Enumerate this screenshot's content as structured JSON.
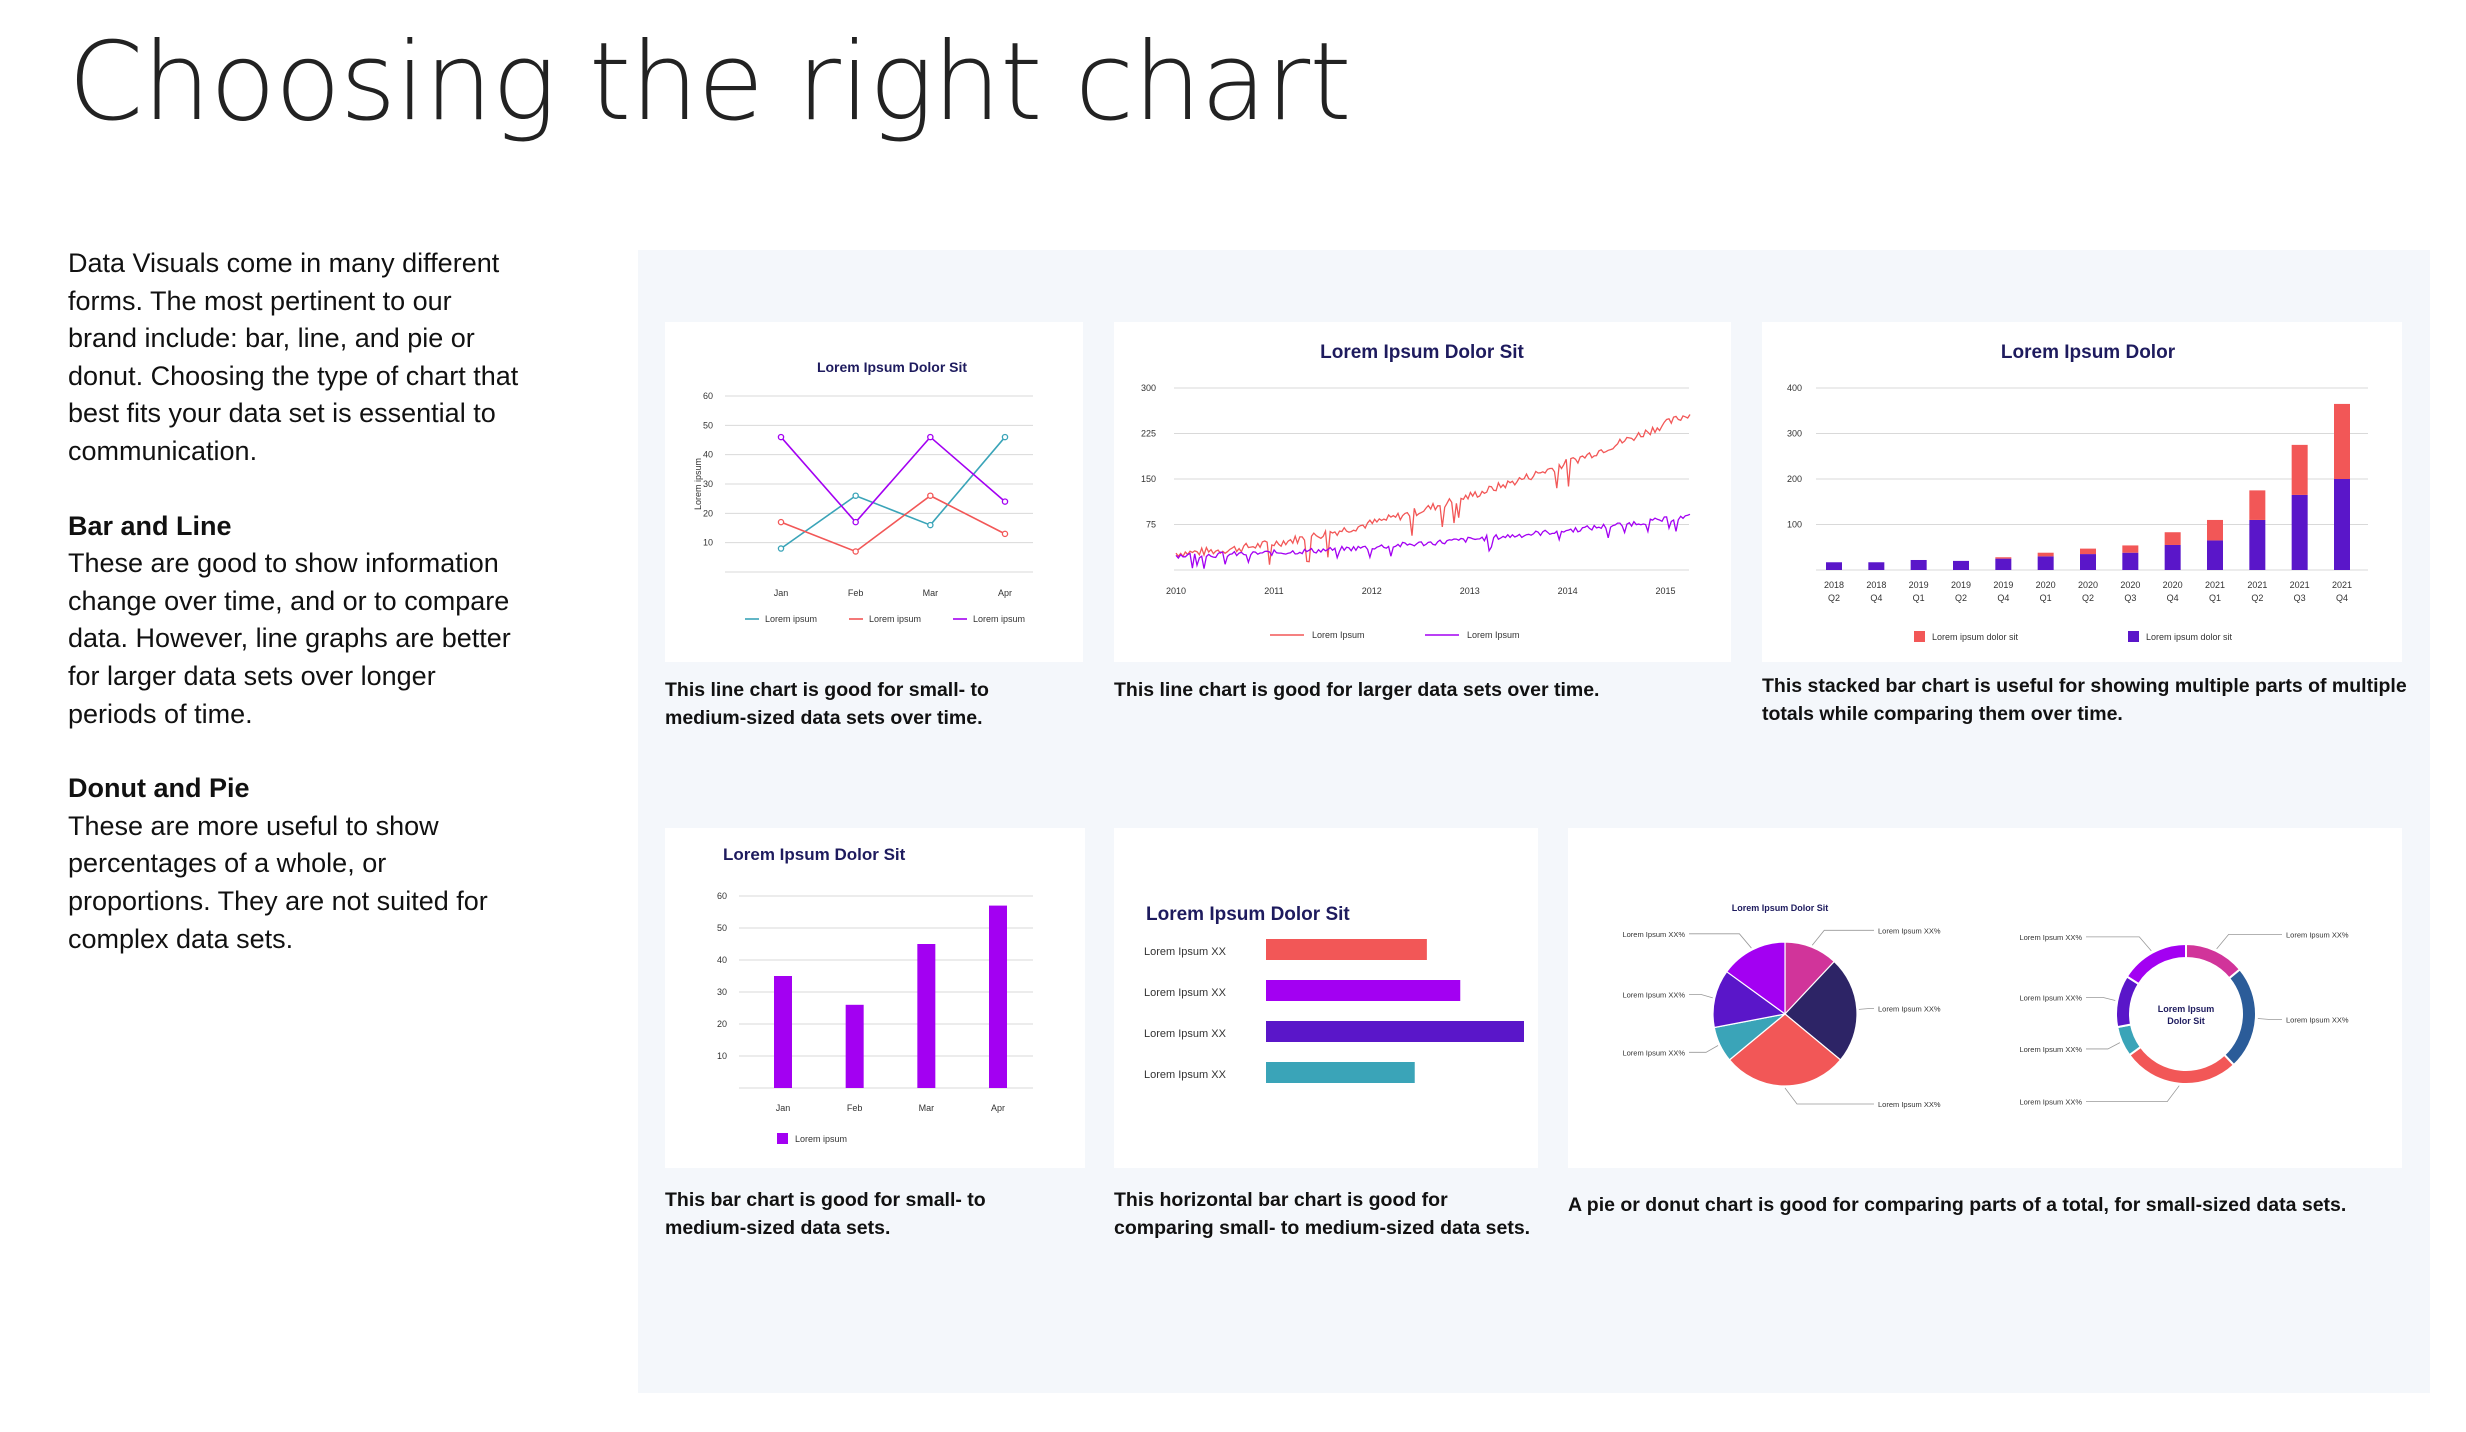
{
  "page": {
    "title": "Choosing the right chart",
    "intro": "Data Visuals come in many different forms. The most pertinent to our brand include: bar, line, and pie or donut. Choosing the type of chart that best fits your data set is essential to communication.",
    "bar_line_heading": "Bar and Line",
    "bar_line_text": "These are good to show information change over time, and or to compare data. However, line graphs are better for larger data sets over longer periods of time.",
    "donut_pie_heading": "Donut and Pie",
    "donut_pie_text": "These are more useful to show percentages of a whole, or proportions. They are not suited for complex data sets."
  },
  "captions": {
    "c1": "This line chart is good for small- to medium-sized data sets over time.",
    "c2": "This line chart is good for larger data sets over time.",
    "c3": "This stacked bar chart is useful for showing multiple parts of multiple totals while comparing them over time.",
    "c4": "This bar chart is good for small- to medium-sized data sets.",
    "c5": "This horizontal bar chart is good for comparing small- to medium-sized data sets.",
    "c6": "A pie or donut chart is good for comparing parts of a total, for small-sized data sets."
  },
  "colors": {
    "navy": "#1e1b5e",
    "coral": "#f25757",
    "violet": "#a300f2",
    "indigo": "#5a16c9",
    "teal": "#3aa4b8",
    "magenta": "#d1349a",
    "darknavy": "#2d2466",
    "blue": "#2b5c99"
  },
  "chart_data": [
    {
      "id": "line_small",
      "type": "line",
      "title": "Lorem Ipsum Dolor Sit",
      "ylabel": "Lorem ipsum",
      "categories": [
        "Jan",
        "Feb",
        "Mar",
        "Apr"
      ],
      "yticks": [
        "10",
        "20",
        "30",
        "40",
        "50",
        "60"
      ],
      "ylim": [
        0,
        60
      ],
      "series": [
        {
          "name": "Lorem ipsum",
          "color": "#3aa4b8",
          "values": [
            8,
            26,
            16,
            46
          ]
        },
        {
          "name": "Lorem ipsum",
          "color": "#f25757",
          "values": [
            17,
            7,
            26,
            13
          ]
        },
        {
          "name": "Lorem ipsum",
          "color": "#a300f2",
          "values": [
            46,
            17,
            46,
            24
          ]
        }
      ]
    },
    {
      "id": "line_large",
      "type": "line",
      "title": "Lorem Ipsum Dolor Sit",
      "xticks": [
        "2010",
        "2011",
        "2012",
        "2013",
        "2014",
        "2015"
      ],
      "yticks": [
        "75",
        "150",
        "225",
        "300"
      ],
      "ylim": [
        0,
        300
      ],
      "xlim": [
        2010,
        2015.25
      ],
      "series": [
        {
          "name": "Lorem Ipsum",
          "color": "#f25757",
          "start": 28,
          "end": 258
        },
        {
          "name": "Lorem Ipsum",
          "color": "#a300f2",
          "start": 24,
          "end": 88
        }
      ]
    },
    {
      "id": "stacked_bar",
      "type": "bar",
      "title": "Lorem Ipsum Dolor",
      "categories": [
        [
          "2018",
          "Q2"
        ],
        [
          "2018",
          "Q4"
        ],
        [
          "2019",
          "Q1"
        ],
        [
          "2019",
          "Q2"
        ],
        [
          "2019",
          "Q4"
        ],
        [
          "2020",
          "Q1"
        ],
        [
          "2020",
          "Q2"
        ],
        [
          "2020",
          "Q3"
        ],
        [
          "2020",
          "Q4"
        ],
        [
          "2021",
          "Q1"
        ],
        [
          "2021",
          "Q2"
        ],
        [
          "2021",
          "Q3"
        ],
        [
          "2021",
          "Q4"
        ]
      ],
      "yticks": [
        "100",
        "200",
        "300",
        "400"
      ],
      "ylim": [
        0,
        400
      ],
      "series": [
        {
          "name": "Lorem ipsum dolor sit",
          "color": "#f25757",
          "values": [
            0,
            0,
            0,
            0,
            3,
            8,
            12,
            16,
            28,
            45,
            65,
            110,
            165
          ]
        },
        {
          "name": "Lorem ipsum dolor sit",
          "color": "#5a16c9",
          "values": [
            17,
            17,
            22,
            20,
            25,
            30,
            35,
            38,
            55,
            65,
            110,
            165,
            200
          ]
        }
      ]
    },
    {
      "id": "bar_small",
      "type": "bar",
      "title": "Lorem Ipsum Dolor Sit",
      "categories": [
        "Jan",
        "Feb",
        "Mar",
        "Apr"
      ],
      "yticks": [
        "10",
        "20",
        "30",
        "40",
        "50",
        "60"
      ],
      "ylim": [
        0,
        60
      ],
      "series": [
        {
          "name": "Lorem ipsum",
          "color": "#a300f2",
          "values": [
            35,
            26,
            45,
            57
          ]
        }
      ]
    },
    {
      "id": "hbar",
      "type": "bar",
      "title": "Lorem Ipsum Dolor Sit",
      "categories": [
        "Lorem Ipsum XX",
        "Lorem Ipsum XX",
        "Lorem Ipsum XX",
        "Lorem Ipsum XX"
      ],
      "values": [
        53,
        64,
        85,
        49
      ],
      "colors": [
        "#f25757",
        "#a300f2",
        "#5a16c9",
        "#3aa4b8"
      ],
      "xlim": [
        0,
        85
      ]
    },
    {
      "id": "pie",
      "type": "pie",
      "title": "Lorem Ipsum Dolor Sit",
      "labels": [
        "Lorem Ipsum XX%",
        "Lorem Ipsum XX%",
        "Lorem Ipsum XX%",
        "Lorem Ipsum XX%",
        "Lorem Ipsum XX%",
        "Lorem Ipsum XX%"
      ],
      "values": [
        12,
        24,
        28,
        8,
        13,
        15
      ],
      "colors": [
        "#d1349a",
        "#2d2466",
        "#f25757",
        "#3aa4b8",
        "#5a16c9",
        "#a300f2"
      ]
    },
    {
      "id": "donut",
      "type": "pie",
      "title": "Lorem Ipsum Dolor Sit",
      "center_label": [
        "Lorem Ipsum",
        "Dolor Sit"
      ],
      "labels": [
        "Lorem Ipsum XX%",
        "Lorem Ipsum XX%",
        "Lorem Ipsum XX%",
        "Lorem Ipsum XX%",
        "Lorem Ipsum XX%",
        "Lorem Ipsum XX%"
      ],
      "values": [
        14,
        24,
        27,
        7,
        12,
        16
      ],
      "colors": [
        "#d1349a",
        "#2b5c99",
        "#f25757",
        "#3aa4b8",
        "#5a16c9",
        "#a300f2"
      ]
    }
  ]
}
